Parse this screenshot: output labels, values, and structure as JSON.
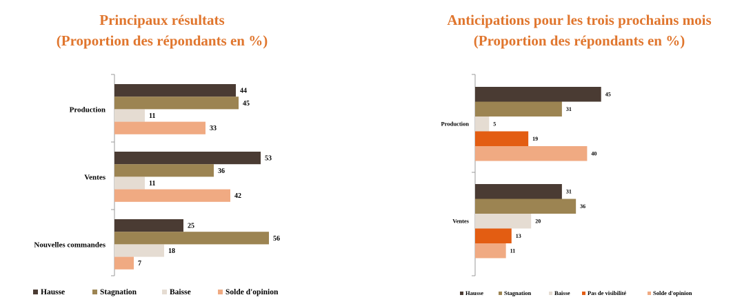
{
  "titles": {
    "left_line1": "Principaux résultats",
    "left_line2": "(Proportion des répondants en %)",
    "right_line1": "Anticipations pour les trois prochains mois",
    "right_line2": "(Proportion des répondants en %)"
  },
  "chart_data": [
    {
      "type": "bar",
      "orientation": "horizontal",
      "title": "Principaux résultats (Proportion des répondants en %)",
      "categories": [
        "Production",
        "Ventes",
        "Nouvelles commandes"
      ],
      "series": [
        {
          "name": "Hausse",
          "color": "#4a3b33",
          "values": [
            44,
            53,
            25
          ]
        },
        {
          "name": "Stagnation",
          "color": "#9c8452",
          "values": [
            45,
            36,
            56
          ]
        },
        {
          "name": "Baisse",
          "color": "#e5dcd2",
          "values": [
            11,
            11,
            18
          ]
        },
        {
          "name": "Solde d'opinion",
          "color": "#f0aa82",
          "values": [
            33,
            42,
            7
          ]
        }
      ],
      "legend_position": "bottom",
      "grid": false
    },
    {
      "type": "bar",
      "orientation": "horizontal",
      "title": "Anticipations pour les trois prochains mois (Proportion des répondants en %)",
      "categories": [
        "Production",
        "Ventes"
      ],
      "series": [
        {
          "name": "Hausse",
          "color": "#4a3b33",
          "values": [
            45,
            31
          ]
        },
        {
          "name": "Stagnation",
          "color": "#9c8452",
          "values": [
            31,
            36
          ]
        },
        {
          "name": "Baisse",
          "color": "#e5dcd2",
          "values": [
            5,
            20
          ]
        },
        {
          "name": "Pas de visibilité",
          "color": "#e35d12",
          "values": [
            19,
            13
          ]
        },
        {
          "name": "Solde d'opinion",
          "color": "#f0aa82",
          "values": [
            40,
            11
          ]
        }
      ],
      "legend_position": "bottom",
      "grid": false
    }
  ]
}
